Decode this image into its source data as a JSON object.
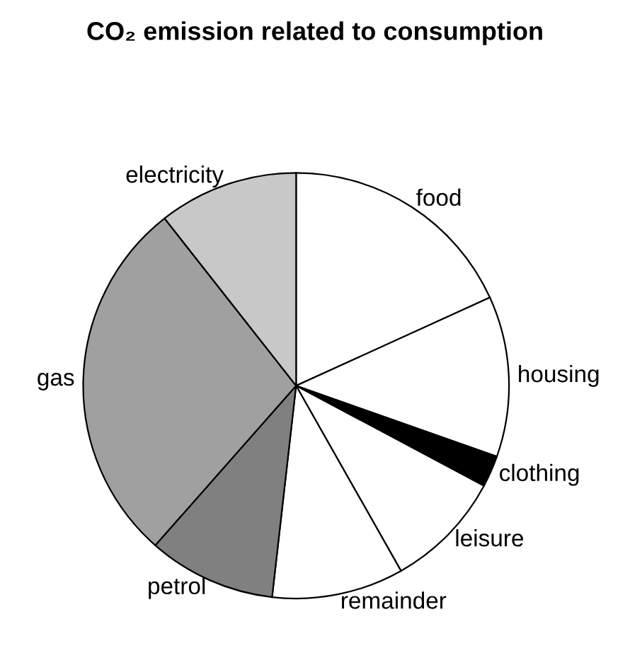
{
  "chart_data": {
    "type": "pie",
    "title": "CO₂ emission related to consumption",
    "categories": [
      "food",
      "housing",
      "clothing",
      "leisure",
      "remainder",
      "petrol",
      "gas",
      "electricity"
    ],
    "values": [
      18.2,
      12.2,
      2.4,
      9,
      10,
      9.7,
      27.9,
      10.6
    ],
    "colors": [
      "#ffffff",
      "#ffffff",
      "#000000",
      "#ffffff",
      "#ffffff",
      "#808080",
      "#a0a0a0",
      "#c8c8c8"
    ]
  }
}
